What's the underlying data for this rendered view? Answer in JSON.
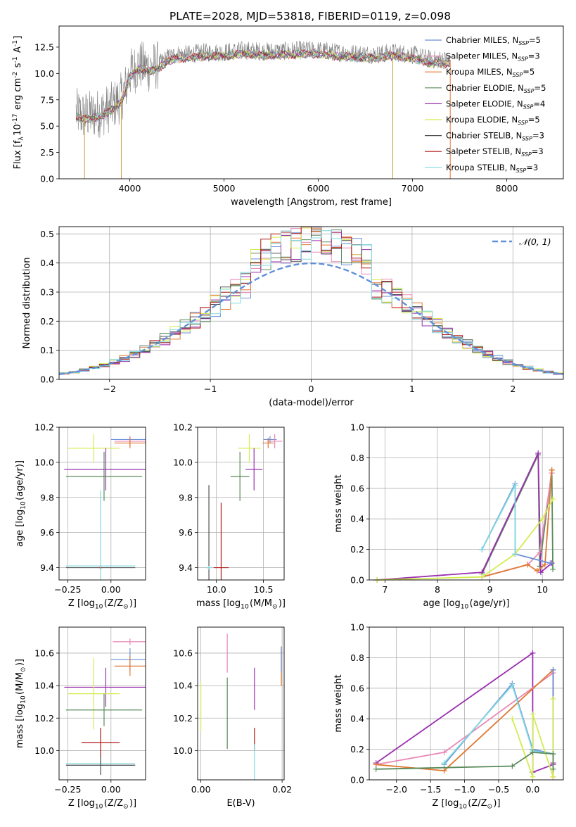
{
  "figure": {
    "title": "PLATE=2028, MJD=53818, FIBERID=0119, z=0.098"
  },
  "chart_data": [
    {
      "id": "spectrum",
      "type": "line",
      "xlabel": "wavelength [Angstrom, rest frame]",
      "ylabel": "Flux [f$_\\lambda$10$^{-17}$ erg cm$^{-2}$ s$^{-1}$ A$^{-1}$]",
      "xlim": [
        3250,
        8600
      ],
      "ylim": [
        0,
        14.5
      ],
      "xticks": [
        4000,
        5000,
        6000,
        7000,
        8000
      ],
      "yticks": [
        0.0,
        2.5,
        5.0,
        7.5,
        10.0,
        12.5
      ],
      "grid": false,
      "legend_position": "top-right",
      "legend": [
        {
          "label": "Chabrier MILES, N",
          "sub": "SSP",
          "tail": "=5",
          "color": "#6a8fd6"
        },
        {
          "label": "Salpeter MILES, N",
          "sub": "SSP",
          "tail": "=3",
          "color": "#e888b8"
        },
        {
          "label": "Kroupa MILES, N",
          "sub": "SSP",
          "tail": "=5",
          "color": "#e07830"
        },
        {
          "label": "Chabrier ELODIE, N",
          "sub": "SSP",
          "tail": "=5",
          "color": "#5a8a5a"
        },
        {
          "label": "Salpeter ELODIE, N",
          "sub": "SSP",
          "tail": "=4",
          "color": "#9a30b0"
        },
        {
          "label": "Kroupa ELODIE, N",
          "sub": "SSP",
          "tail": "=5",
          "color": "#d4ec50"
        },
        {
          "label": "Chabrier STELIB, N",
          "sub": "SSP",
          "tail": "=3",
          "color": "#505050"
        },
        {
          "label": "Salpeter STELIB, N",
          "sub": "SSP",
          "tail": "=3",
          "color": "#b01818"
        },
        {
          "label": "Kroupa STELIB, N",
          "sub": "SSP",
          "tail": "=3",
          "color": "#80d8e0"
        }
      ],
      "data_color": "#808080",
      "continuum": {
        "x": [
          3430,
          3500,
          3600,
          3700,
          3800,
          3900,
          3950,
          4000,
          4100,
          4200,
          4300,
          4400,
          4500,
          4600,
          4700,
          4800,
          5000,
          5200,
          5400,
          5600,
          5800,
          6000,
          6200,
          6400,
          6600,
          6800,
          7000,
          7200,
          7400
        ],
        "y": [
          6.3,
          6.0,
          6.1,
          6.3,
          6.8,
          7.6,
          8.5,
          10.0,
          10.8,
          10.5,
          10.8,
          11.5,
          11.8,
          11.8,
          11.9,
          12.0,
          12.0,
          12.2,
          12.1,
          12.1,
          12.2,
          12.2,
          12.0,
          11.9,
          11.8,
          12.0,
          11.8,
          11.3,
          11.3
        ]
      },
      "spikes": {
        "x": [
          3520,
          3910,
          6790,
          7400
        ],
        "y_low": [
          0.0,
          0.0,
          0.0,
          0.0
        ]
      }
    },
    {
      "id": "residuals",
      "type": "step",
      "xlabel": "(data-model)/error",
      "ylabel": "Normed distribution",
      "xlim": [
        -2.5,
        2.5
      ],
      "ylim": [
        0,
        0.525
      ],
      "xticks": [
        -2,
        -1,
        0,
        1,
        2
      ],
      "yticks": [
        0.0,
        0.1,
        0.2,
        0.3,
        0.4,
        0.5
      ],
      "grid": true,
      "legend_position": "top-right",
      "legend_label": "𝒩(0, 1)",
      "normal_color": "#6090d8",
      "bin_width": 0.1
    },
    {
      "id": "age-vs-Z",
      "type": "errorbar",
      "xlabel": "Z [log$_{10}$(Z/Z$_\\odot$)]",
      "ylabel": "age  [log$_{10}$(age/yr)]",
      "xlim": [
        -0.3,
        0.2
      ],
      "ylim": [
        9.33,
        10.2
      ],
      "xticks": [
        -0.25,
        0.0
      ],
      "yticks": [
        9.4,
        9.6,
        9.8,
        10.0,
        10.2
      ],
      "grid": true,
      "points": [
        {
          "color": "#6a8fd6",
          "x": 0.11,
          "y": 10.13,
          "xerr": 0.11,
          "yerr": 0.02
        },
        {
          "color": "#e888b8",
          "x": 0.11,
          "y": 10.12,
          "xerr": 0.09,
          "yerr": 0.03
        },
        {
          "color": "#e07830",
          "x": 0.11,
          "y": 10.11,
          "xerr": 0.09,
          "yerr": 0.03
        },
        {
          "color": "#d4ec50",
          "x": -0.1,
          "y": 10.08,
          "xerr": 0.15,
          "yerr": 0.08
        },
        {
          "color": "#9a30b0",
          "x": -0.03,
          "y": 9.96,
          "xerr": 0.24,
          "yerr": 0.12
        },
        {
          "color": "#5a8a5a",
          "x": -0.04,
          "y": 9.92,
          "xerr": 0.22,
          "yerr": 0.14
        },
        {
          "color": "#505050",
          "x": -0.06,
          "y": 9.4,
          "xerr": 0.2,
          "yerr": 0.01
        },
        {
          "color": "#b01818",
          "x": -0.06,
          "y": 9.4,
          "xerr": 0.01,
          "yerr": 0.01
        },
        {
          "color": "#80d8e0",
          "x": -0.06,
          "y": 9.41,
          "xerr": 0.2,
          "yerr": 0.43
        }
      ]
    },
    {
      "id": "age-vs-mass",
      "type": "errorbar",
      "xlabel": "mass [log$_{10}$(M/M$_\\odot$)]",
      "ylabel": "",
      "xlim": [
        9.8,
        10.72
      ],
      "ylim": [
        9.33,
        10.2
      ],
      "xticks": [
        10.0,
        10.5
      ],
      "yticks": [
        9.4,
        9.6,
        9.8,
        10.0,
        10.2
      ],
      "grid": true,
      "points": [
        {
          "color": "#6a8fd6",
          "x": 10.57,
          "y": 10.13,
          "xerr": 0.07,
          "yerr": 0.02
        },
        {
          "color": "#e888b8",
          "x": 10.62,
          "y": 10.12,
          "xerr": 0.08,
          "yerr": 0.04
        },
        {
          "color": "#e07830",
          "x": 10.55,
          "y": 10.11,
          "xerr": 0.06,
          "yerr": 0.03
        },
        {
          "color": "#d4ec50",
          "x": 10.35,
          "y": 10.08,
          "xerr": 0.12,
          "yerr": 0.08
        },
        {
          "color": "#9a30b0",
          "x": 10.4,
          "y": 9.96,
          "xerr": 0.09,
          "yerr": 0.12
        },
        {
          "color": "#5a8a5a",
          "x": 10.25,
          "y": 9.92,
          "xerr": 0.1,
          "yerr": 0.14
        },
        {
          "color": "#505050",
          "x": 9.92,
          "y": 9.4,
          "xerr": 0.02,
          "yerr": 0.47
        },
        {
          "color": "#b01818",
          "x": 10.05,
          "y": 9.4,
          "xerr": 0.08,
          "yerr": 0.37
        },
        {
          "color": "#80d8e0",
          "x": 9.92,
          "y": 9.4,
          "xerr": 0.03,
          "yerr": 0.01
        }
      ]
    },
    {
      "id": "weight-vs-age",
      "type": "line",
      "xlabel": "age  [log$_{10}$(age/yr)]",
      "ylabel": "mass weight",
      "xlim": [
        6.7,
        10.4
      ],
      "ylim": [
        0,
        1.0
      ],
      "xticks": [
        7,
        8,
        9,
        10
      ],
      "yticks": [
        0.0,
        0.2,
        0.4,
        0.6,
        0.8,
        1.0
      ],
      "grid": true,
      "series": [
        {
          "color": "#5a8a5a",
          "x": [
            8.85,
            9.92,
            9.95,
            10.18,
            10.2
          ],
          "y": [
            0.04,
            0.82,
            0.09,
            0.72,
            0.07
          ]
        },
        {
          "color": "#9a30b0",
          "x": [
            6.85,
            8.85,
            9.92,
            9.97,
            10.18
          ],
          "y": [
            0.0,
            0.05,
            0.83,
            0.05,
            0.11
          ]
        },
        {
          "color": "#e888b8",
          "x": [
            8.85,
            9.72,
            9.95,
            10.18
          ],
          "y": [
            0.02,
            0.1,
            0.18,
            0.7
          ]
        },
        {
          "color": "#e07830",
          "x": [
            8.85,
            9.72,
            9.9,
            10.05,
            10.18
          ],
          "y": [
            0.02,
            0.1,
            0.06,
            0.1,
            0.72
          ]
        },
        {
          "color": "#d4ec50",
          "x": [
            6.85,
            8.85,
            9.48,
            10.0,
            10.2
          ],
          "y": [
            0.0,
            0.02,
            0.17,
            0.4,
            0.53
          ]
        },
        {
          "color": "#6a8fd6",
          "x": [
            8.85,
            9.48,
            9.48,
            10.15
          ],
          "y": [
            0.2,
            0.63,
            0.17,
            0.11
          ]
        },
        {
          "color": "#80d8e0",
          "x": [
            8.85,
            9.48,
            9.48
          ],
          "y": [
            0.2,
            0.62,
            0.17
          ]
        }
      ]
    },
    {
      "id": "mass-vs-Z",
      "type": "errorbar",
      "xlabel": "Z [log$_{10}$(Z/Z$_\\odot$)]",
      "ylabel": "mass [log$_{10}$(M/M$_\\odot$)]",
      "xlim": [
        -0.3,
        0.2
      ],
      "ylim": [
        9.82,
        10.76
      ],
      "xticks": [
        -0.25,
        0.0
      ],
      "yticks": [
        10.0,
        10.2,
        10.4,
        10.6
      ],
      "grid": true,
      "points": [
        {
          "color": "#e888b8",
          "x": 0.11,
          "y": 10.67,
          "xerr": 0.1,
          "yerr": 0.02
        },
        {
          "color": "#6a8fd6",
          "x": 0.11,
          "y": 10.56,
          "xerr": 0.11,
          "yerr": 0.07
        },
        {
          "color": "#e07830",
          "x": 0.11,
          "y": 10.52,
          "xerr": 0.09,
          "yerr": 0.06
        },
        {
          "color": "#9a30b0",
          "x": -0.03,
          "y": 10.39,
          "xerr": 0.24,
          "yerr": 0.12
        },
        {
          "color": "#d4ec50",
          "x": -0.1,
          "y": 10.35,
          "xerr": 0.15,
          "yerr": 0.22
        },
        {
          "color": "#5a8a5a",
          "x": -0.04,
          "y": 10.25,
          "xerr": 0.22,
          "yerr": 0.1
        },
        {
          "color": "#b01818",
          "x": -0.06,
          "y": 10.05,
          "xerr": 0.11,
          "yerr": 0.09
        },
        {
          "color": "#80d8e0",
          "x": -0.06,
          "y": 9.92,
          "xerr": 0.2,
          "yerr": 0.02
        },
        {
          "color": "#505050",
          "x": -0.06,
          "y": 9.91,
          "xerr": 0.2,
          "yerr": 0.06
        }
      ]
    },
    {
      "id": "mass-vs-ebv",
      "type": "errorbar",
      "xlabel": "E(B-V)",
      "ylabel": "",
      "xlim": [
        -0.0008,
        0.0205
      ],
      "ylim": [
        9.82,
        10.76
      ],
      "xticks": [
        0.0,
        0.02
      ],
      "yticks": [
        10.0,
        10.2,
        10.4,
        10.6
      ],
      "grid": true,
      "points": [
        {
          "color": "#d4ec50",
          "x": 0.0,
          "y": 10.27,
          "xerr": 0.0,
          "yerr": 0.15
        },
        {
          "color": "#e888b8",
          "x": 0.0065,
          "y": 10.6,
          "xerr": 0.0,
          "yerr": 0.12
        },
        {
          "color": "#5a8a5a",
          "x": 0.0065,
          "y": 10.23,
          "xerr": 0.0,
          "yerr": 0.22
        },
        {
          "color": "#9a30b0",
          "x": 0.0132,
          "y": 10.38,
          "xerr": 0.0,
          "yerr": 0.13
        },
        {
          "color": "#b01818",
          "x": 0.0132,
          "y": 10.07,
          "xerr": 0.0,
          "yerr": 0.07
        },
        {
          "color": "#80d8e0",
          "x": 0.0132,
          "y": 9.92,
          "xerr": 0.0,
          "yerr": 0.12
        },
        {
          "color": "#e07830",
          "x": 0.0198,
          "y": 10.52,
          "xerr": 0.0,
          "yerr": 0.12
        },
        {
          "color": "#6a8fd6",
          "x": 0.0198,
          "y": 10.56,
          "xerr": 0.0,
          "yerr": 0.08
        }
      ]
    },
    {
      "id": "weight-vs-Z",
      "type": "line",
      "xlabel": "Z [log$_{10}$(Z/Z$_\\odot$)]",
      "ylabel": "mass weight",
      "xlim": [
        -2.4,
        0.45
      ],
      "ylim": [
        0,
        1.0
      ],
      "xticks": [
        -2.0,
        -1.5,
        -1.0,
        -0.5,
        0.0
      ],
      "yticks": [
        0.0,
        0.2,
        0.4,
        0.6,
        0.8,
        1.0
      ],
      "grid": true,
      "series": [
        {
          "color": "#9a30b0",
          "x": [
            -2.3,
            0.0,
            0.0,
            0.3,
            0.3
          ],
          "y": [
            0.11,
            0.83,
            0.05,
            0.1,
            0.11
          ]
        },
        {
          "color": "#e888b8",
          "x": [
            -2.3,
            -1.3,
            0.3,
            0.3
          ],
          "y": [
            0.1,
            0.18,
            0.7,
            0.02
          ]
        },
        {
          "color": "#e07830",
          "x": [
            -2.3,
            -1.3,
            0.3,
            0.3
          ],
          "y": [
            0.1,
            0.06,
            0.72,
            0.02
          ]
        },
        {
          "color": "#6a8fd6",
          "x": [
            -1.3,
            -0.3,
            0.0,
            0.3,
            0.3
          ],
          "y": [
            0.1,
            0.63,
            0.2,
            0.17,
            0.72
          ]
        },
        {
          "color": "#80d8e0",
          "x": [
            -1.3,
            -0.3,
            0.0,
            0.3
          ],
          "y": [
            0.11,
            0.62,
            0.19,
            0.17
          ]
        },
        {
          "color": "#d4ec50",
          "x": [
            -0.3,
            0.0,
            0.0,
            0.3,
            0.3
          ],
          "y": [
            0.4,
            0.02,
            0.43,
            0.02,
            0.53
          ]
        },
        {
          "color": "#5a8a5a",
          "x": [
            -2.3,
            -0.3,
            0.0,
            0.3,
            0.3
          ],
          "y": [
            0.07,
            0.09,
            0.18,
            0.17,
            0.07
          ]
        }
      ]
    }
  ]
}
